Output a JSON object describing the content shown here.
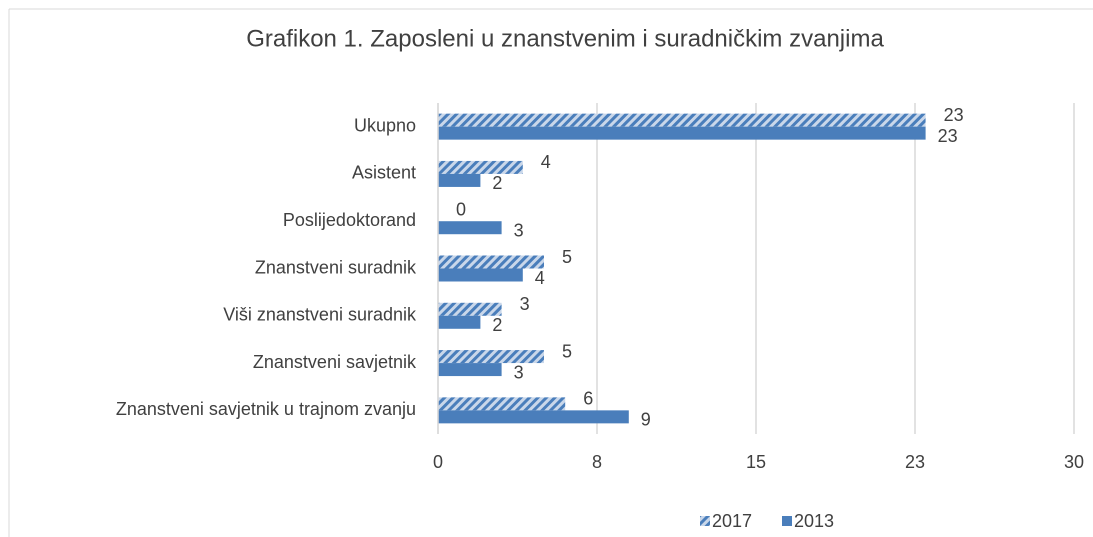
{
  "chart_data": {
    "type": "hbar",
    "title": "Grafikon 1. Zaposleni u znanstvenim i suradničkim zvanjima",
    "categories": [
      "Ukupno",
      "Asistent",
      "Poslijedoktorand",
      "Znanstveni suradnik",
      "Viši znanstveni suradnik",
      "Znanstveni savjetnik",
      "Znanstveni savjetnik u trajnom zvanju"
    ],
    "series": [
      {
        "name": "2017",
        "color": "#4a7ebb",
        "hatch": true,
        "values": [
          23,
          4,
          0,
          5,
          3,
          5,
          6
        ]
      },
      {
        "name": "2013",
        "color": "#4a7ebb",
        "hatch": false,
        "values": [
          23,
          2,
          3,
          4,
          2,
          3,
          9
        ]
      }
    ],
    "xlim": [
      0,
      30
    ],
    "xticks": [
      0,
      {
        "value": 7.5,
        "label": "8"
      },
      15,
      {
        "value": 22.5,
        "label": "23"
      },
      30
    ],
    "grid": true,
    "legend": "bottom"
  }
}
